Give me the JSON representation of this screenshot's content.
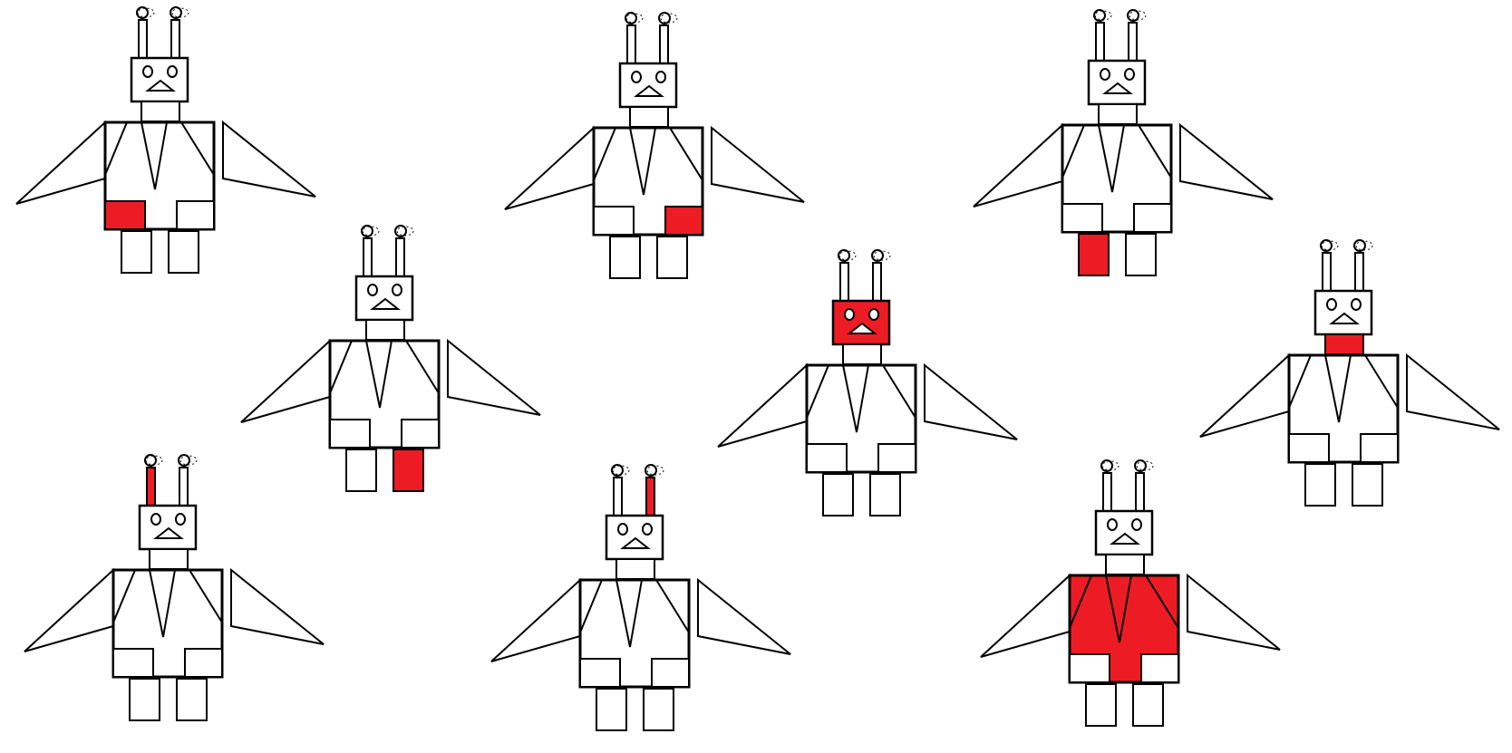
{
  "colors": {
    "background": "#ffffff",
    "outline": "#000000",
    "highlight": "#ed1c24"
  },
  "robots": [
    {
      "id": "robot-1",
      "highlight": "left-pocket"
    },
    {
      "id": "robot-2",
      "highlight": "right-pocket"
    },
    {
      "id": "robot-3",
      "highlight": "left-leg"
    },
    {
      "id": "robot-4",
      "highlight": "right-leg"
    },
    {
      "id": "robot-5",
      "highlight": "head"
    },
    {
      "id": "robot-6",
      "highlight": "neck"
    },
    {
      "id": "robot-7",
      "highlight": "left-antenna"
    },
    {
      "id": "robot-8",
      "highlight": "right-antenna"
    },
    {
      "id": "robot-9",
      "highlight": "body"
    }
  ]
}
